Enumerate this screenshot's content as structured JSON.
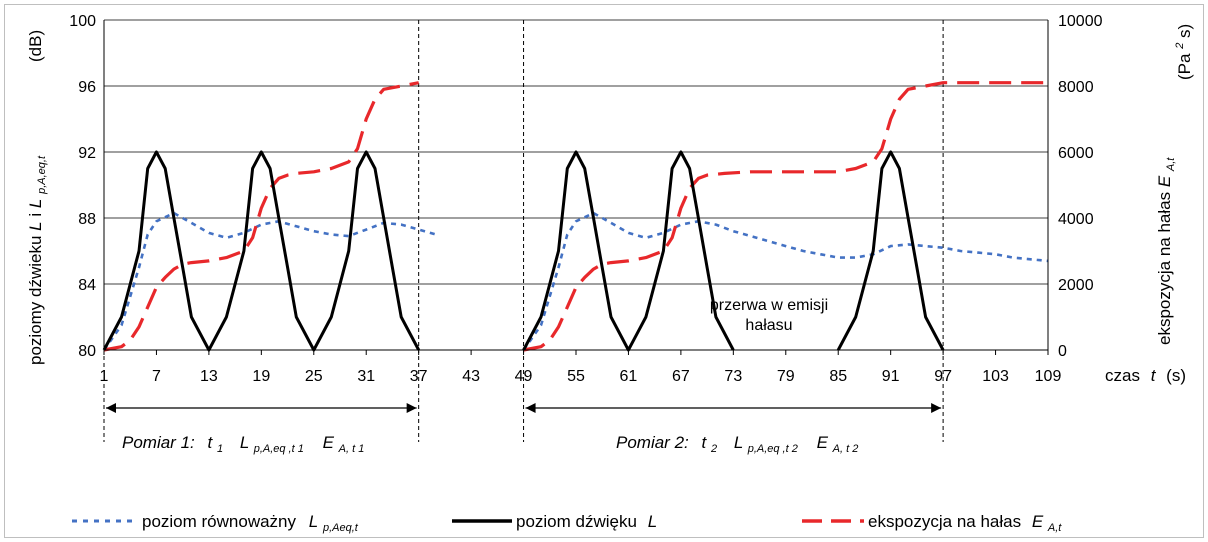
{
  "chart_data": {
    "type": "line",
    "colors": {
      "equivalent": "#4472C4",
      "sound": "#000000",
      "exposure": "#E8282B"
    },
    "x_axis": {
      "ticks": [
        1,
        7,
        13,
        19,
        25,
        31,
        37,
        43,
        49,
        55,
        61,
        67,
        73,
        79,
        85,
        91,
        97,
        103,
        109
      ],
      "label_prefix": "czas",
      "label_var": "t",
      "label_unit": "(s)",
      "xlim": [
        1,
        109
      ]
    },
    "y_left": {
      "ticks": [
        80,
        84,
        88,
        92,
        96,
        100
      ],
      "ylim": [
        80,
        100
      ],
      "label_main": "poziomy dźwieku",
      "label_L": "L",
      "label_i": "i",
      "label_Lsub": "L",
      "label_Lsub_sub": "p,A,eq,t",
      "unit": "(dB)"
    },
    "y_right": {
      "ticks": [
        0,
        2000,
        4000,
        6000,
        8000,
        10000
      ],
      "ylim": [
        0,
        10000
      ],
      "label_main": "ekspozycja na hałas",
      "label_E": "E",
      "label_E_sub": "A,t",
      "unit_pre": "(Pa",
      "unit_sup": "2",
      "unit_post": "s)"
    },
    "series": [
      {
        "name": "poziom dźwięku L",
        "axis": "left",
        "style": "solid",
        "points": [
          [
            1,
            80
          ],
          [
            3,
            82
          ],
          [
            5,
            86
          ],
          [
            6,
            91
          ],
          [
            7,
            92
          ],
          [
            8,
            91
          ],
          [
            9,
            88
          ],
          [
            10,
            85
          ],
          [
            11,
            82
          ],
          [
            13,
            80
          ],
          [
            15,
            82
          ],
          [
            17,
            86
          ],
          [
            18,
            91
          ],
          [
            19,
            92
          ],
          [
            20,
            91
          ],
          [
            21,
            88
          ],
          [
            22,
            85
          ],
          [
            23,
            82
          ],
          [
            25,
            80
          ],
          [
            27,
            82
          ],
          [
            29,
            86
          ],
          [
            30,
            91
          ],
          [
            31,
            92
          ],
          [
            32,
            91
          ],
          [
            33,
            88
          ],
          [
            34,
            85
          ],
          [
            35,
            82
          ],
          [
            37,
            80
          ]
        ]
      },
      {
        "name": "poziom dźwięku L",
        "axis": "left",
        "style": "solid",
        "points": [
          [
            49,
            80
          ],
          [
            51,
            82
          ],
          [
            53,
            86
          ],
          [
            54,
            91
          ],
          [
            55,
            92
          ],
          [
            56,
            91
          ],
          [
            57,
            88
          ],
          [
            58,
            85
          ],
          [
            59,
            82
          ],
          [
            61,
            80
          ],
          [
            63,
            82
          ],
          [
            65,
            86
          ],
          [
            66,
            91
          ],
          [
            67,
            92
          ],
          [
            68,
            91
          ],
          [
            69,
            88
          ],
          [
            70,
            85
          ],
          [
            71,
            82
          ],
          [
            73,
            80
          ]
        ]
      },
      {
        "name": "poziom dźwięku L",
        "axis": "left",
        "style": "solid",
        "points": [
          [
            85,
            80
          ],
          [
            87,
            82
          ],
          [
            89,
            86
          ],
          [
            90,
            91
          ],
          [
            91,
            92
          ],
          [
            92,
            91
          ],
          [
            93,
            88
          ],
          [
            94,
            85
          ],
          [
            95,
            82
          ],
          [
            97,
            80
          ]
        ]
      },
      {
        "name": "poziom równoważny L_p,Aeq,t",
        "axis": "left",
        "style": "dotted",
        "points": [
          [
            1,
            80
          ],
          [
            3,
            81.5
          ],
          [
            5,
            85
          ],
          [
            6,
            87
          ],
          [
            7,
            87.8
          ],
          [
            9,
            88.3
          ],
          [
            11,
            87.7
          ],
          [
            13,
            87.1
          ],
          [
            15,
            86.8
          ],
          [
            17,
            87.1
          ],
          [
            19,
            87.6
          ],
          [
            21,
            87.8
          ],
          [
            23,
            87.5
          ],
          [
            25,
            87.2
          ],
          [
            27,
            87
          ],
          [
            29,
            86.9
          ],
          [
            31,
            87.3
          ],
          [
            33,
            87.7
          ],
          [
            35,
            87.6
          ],
          [
            37,
            87.3
          ],
          [
            39,
            87
          ]
        ]
      },
      {
        "name": "poziom równoważny L_p,Aeq,t",
        "axis": "left",
        "style": "dotted",
        "points": [
          [
            49,
            80
          ],
          [
            51,
            81.5
          ],
          [
            53,
            85
          ],
          [
            54,
            87
          ],
          [
            55,
            87.8
          ],
          [
            57,
            88.3
          ],
          [
            59,
            87.7
          ],
          [
            61,
            87.1
          ],
          [
            63,
            86.8
          ],
          [
            65,
            87.1
          ],
          [
            67,
            87.6
          ],
          [
            69,
            87.8
          ],
          [
            71,
            87.6
          ],
          [
            73,
            87.2
          ],
          [
            75,
            86.9
          ],
          [
            77,
            86.6
          ],
          [
            79,
            86.3
          ],
          [
            81,
            86
          ],
          [
            83,
            85.8
          ],
          [
            85,
            85.6
          ],
          [
            87,
            85.6
          ],
          [
            89,
            85.8
          ],
          [
            91,
            86.3
          ],
          [
            93,
            86.4
          ],
          [
            95,
            86.3
          ],
          [
            97,
            86.2
          ],
          [
            99,
            86
          ],
          [
            101,
            85.9
          ],
          [
            103,
            85.8
          ],
          [
            105,
            85.6
          ],
          [
            107,
            85.5
          ],
          [
            109,
            85.4
          ]
        ]
      },
      {
        "name": "ekspozycja na hałas E_A,t",
        "axis": "right",
        "style": "dashed",
        "points": [
          [
            1,
            0
          ],
          [
            3,
            100
          ],
          [
            4,
            300
          ],
          [
            5,
            700
          ],
          [
            6,
            1300
          ],
          [
            7,
            1900
          ],
          [
            8,
            2200
          ],
          [
            9,
            2450
          ],
          [
            10,
            2600
          ],
          [
            11,
            2650
          ],
          [
            13,
            2700
          ],
          [
            15,
            2800
          ],
          [
            17,
            3000
          ],
          [
            18,
            3400
          ],
          [
            19,
            4300
          ],
          [
            20,
            4900
          ],
          [
            21,
            5200
          ],
          [
            22,
            5300
          ],
          [
            23,
            5350
          ],
          [
            25,
            5400
          ],
          [
            27,
            5500
          ],
          [
            29,
            5700
          ],
          [
            30,
            6100
          ],
          [
            31,
            7000
          ],
          [
            32,
            7600
          ],
          [
            33,
            7900
          ],
          [
            35,
            8000
          ],
          [
            37,
            8100
          ]
        ]
      },
      {
        "name": "ekspozycja na hałas E_A,t",
        "axis": "right",
        "style": "dashed",
        "points": [
          [
            49,
            0
          ],
          [
            51,
            100
          ],
          [
            52,
            300
          ],
          [
            53,
            700
          ],
          [
            54,
            1300
          ],
          [
            55,
            1900
          ],
          [
            56,
            2200
          ],
          [
            57,
            2450
          ],
          [
            58,
            2600
          ],
          [
            59,
            2650
          ],
          [
            61,
            2700
          ],
          [
            63,
            2800
          ],
          [
            65,
            3000
          ],
          [
            66,
            3400
          ],
          [
            67,
            4300
          ],
          [
            68,
            4900
          ],
          [
            69,
            5200
          ],
          [
            70,
            5300
          ],
          [
            72,
            5350
          ],
          [
            75,
            5400
          ],
          [
            85,
            5400
          ],
          [
            87,
            5500
          ],
          [
            89,
            5700
          ],
          [
            90,
            6100
          ],
          [
            91,
            7000
          ],
          [
            92,
            7600
          ],
          [
            93,
            7900
          ],
          [
            95,
            8000
          ],
          [
            97,
            8100
          ],
          [
            109,
            8100
          ]
        ]
      }
    ],
    "boundaries": [
      1,
      37,
      49,
      97
    ],
    "annotation": {
      "line1": "przerwa w emisji",
      "line2": "hałasu"
    },
    "measurements": [
      {
        "prefix": "Pomiar 1:",
        "t": "t",
        "t_sub": "1",
        "L": "L",
        "L_sub": "p,A,eq ,t 1",
        "E": "E",
        "E_sub": "A, t 1",
        "from": 1,
        "to": 37
      },
      {
        "prefix": "Pomiar 2:",
        "t": "t",
        "t_sub": "2",
        "L": "L",
        "L_sub": "p,A,eq ,t 2",
        "E": "E",
        "E_sub": "A, t 2",
        "from": 49,
        "to": 97
      }
    ],
    "legend": [
      {
        "key": "equivalent",
        "style": "dotted",
        "label": "poziom równoważny",
        "var": "L",
        "var_sub": "p,Aeq,t"
      },
      {
        "key": "sound",
        "style": "solid",
        "label": "poziom dźwięku",
        "var": "L",
        "var_sub": ""
      },
      {
        "key": "exposure",
        "style": "dashed",
        "label": "ekspozycja na hałas",
        "var": "E",
        "var_sub": "A,t"
      }
    ],
    "legend_position": "bottom",
    "grid": true
  }
}
